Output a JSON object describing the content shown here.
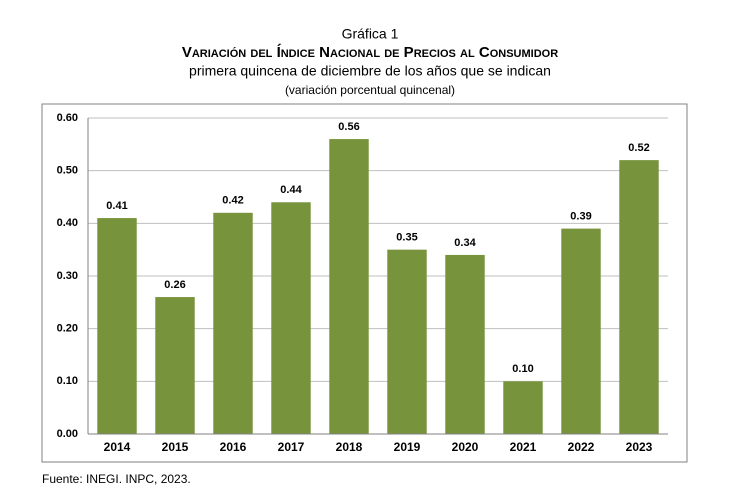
{
  "chart_data": {
    "type": "bar",
    "title": "Gráfica 1",
    "subtitle": "Variación del Índice Nacional de Precios al Consumidor",
    "subtitle2": "primera quincena de diciembre de los años que se indican",
    "subtitle3": "(variación porcentual quincenal)",
    "categories": [
      "2014",
      "2015",
      "2016",
      "2017",
      "2018",
      "2019",
      "2020",
      "2021",
      "2022",
      "2023"
    ],
    "values": [
      0.41,
      0.26,
      0.42,
      0.44,
      0.56,
      0.35,
      0.34,
      0.1,
      0.39,
      0.52
    ],
    "value_labels": [
      "0.41",
      "0.26",
      "0.42",
      "0.44",
      "0.56",
      "0.35",
      "0.34",
      "0.10",
      "0.39",
      "0.52"
    ],
    "color": "#77933c",
    "ylim": [
      0,
      0.6
    ],
    "yticks": [
      {
        "value": 0,
        "label": "0.00"
      },
      {
        "value": 0.1,
        "label": "0.10"
      },
      {
        "value": 0.2,
        "label": "0.20"
      },
      {
        "value": 0.3,
        "label": "0.30"
      },
      {
        "value": 0.4,
        "label": "0.40"
      },
      {
        "value": 0.5,
        "label": "0.50"
      },
      {
        "value": 0.6,
        "label": "0.60"
      }
    ],
    "grid": true,
    "source": "Fuente: INEGI. INPC, 2023."
  }
}
